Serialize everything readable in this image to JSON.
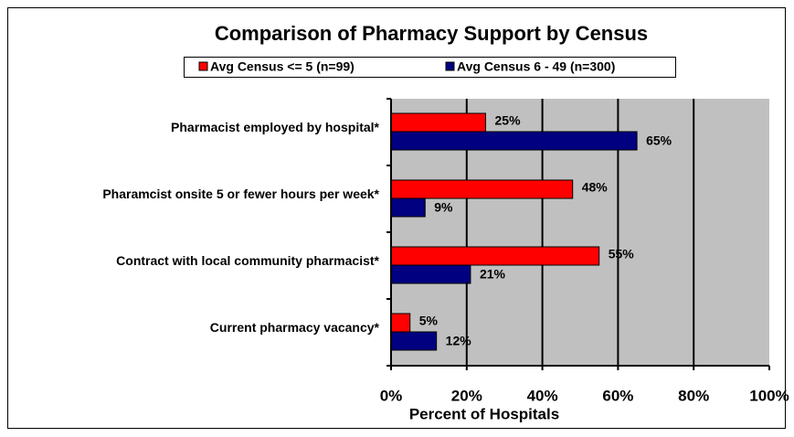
{
  "chart_data": {
    "type": "bar",
    "orientation": "horizontal",
    "title": "Comparison of Pharmacy Support by Census",
    "x_label": "Percent of Hospitals",
    "categories": [
      "Pharmacist employed by hospital*",
      "Pharamcist onsite 5 or fewer hours per week*",
      "Contract with local community pharmacist*",
      "Current pharmacy vacancy*"
    ],
    "series": [
      {
        "name": "Avg Census  <= 5 (n=99)",
        "color": "#ff0000",
        "values": [
          25,
          48,
          55,
          5
        ],
        "value_labels": [
          "25%",
          "48%",
          "55%",
          "5%"
        ]
      },
      {
        "name": "Avg Census  6 - 49 (n=300)",
        "color": "#000080",
        "values": [
          65,
          9,
          21,
          12
        ],
        "value_labels": [
          "65%",
          "9%",
          "21%",
          "12%"
        ]
      }
    ],
    "xlim": [
      0,
      100
    ],
    "xticks": [
      {
        "value": 0,
        "label": "0%"
      },
      {
        "value": 20,
        "label": "20%"
      },
      {
        "value": 40,
        "label": "40%"
      },
      {
        "value": 60,
        "label": "60%"
      },
      {
        "value": 80,
        "label": "80%"
      },
      {
        "value": 100,
        "label": "100%"
      }
    ],
    "grid": true,
    "legend": "top",
    "background": "#c0c0c0"
  }
}
